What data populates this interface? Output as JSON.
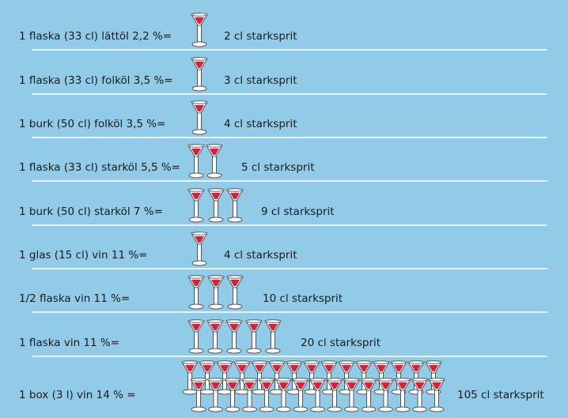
{
  "rows": [
    {
      "label": "1 flaska (33 cl) lättöl 2,2 %=",
      "equivalent": "2 cl starksprit"
    },
    {
      "label": "1 flaska (33 cl) folköl 3,5 %=",
      "equivalent": "3 cl starksprit"
    },
    {
      "label": "1 burk (50 cl) folköl 3,5 %=",
      "equivalent": "4 cl starksprit"
    },
    {
      "label": "1 flaska (33 cl) starköl 5,5 %=",
      "equivalent": "5 cl starksprit"
    },
    {
      "label": "1 burk (50 cl) starköl 7 %=",
      "equivalent": "9 cl starksprit"
    },
    {
      "label": "1 glas (15 cl) vin 11 %=",
      "equivalent": "4 cl starksprit"
    },
    {
      "label": "1/2 flaska vin 11 %=",
      "equivalent": "10 cl starksprit"
    },
    {
      "label": "1 flaska vin 11 %=",
      "equivalent": "20 cl starksprit"
    },
    {
      "label": "1 box (3 l) vin 14 % =",
      "equivalent": "105 cl starksprit"
    }
  ]
}
